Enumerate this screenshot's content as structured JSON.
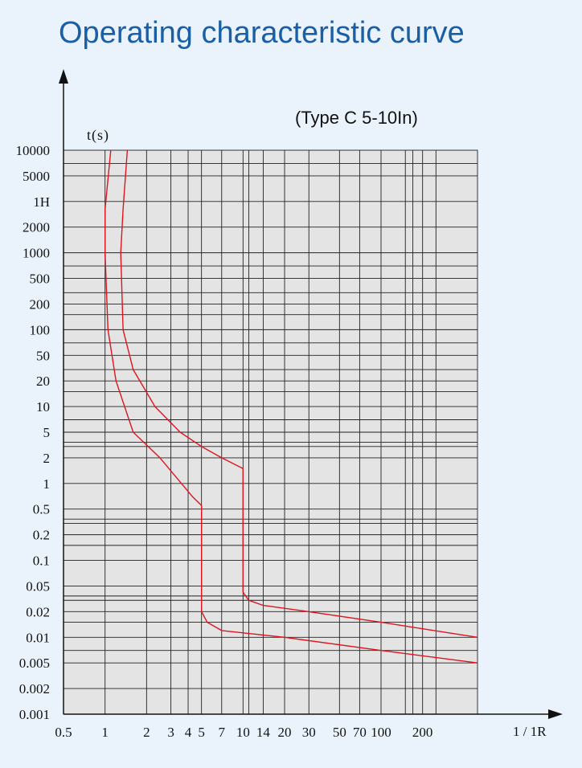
{
  "title": "Operating characteristic curve",
  "chart_data": {
    "type": "line",
    "title": "Operating characteristic curve",
    "subtitle": "(Type C 5-10In)",
    "ylabel": "t(s)",
    "xlabel": "1 / 1R",
    "xscale": "log",
    "yscale": "log",
    "grid": true,
    "x_ticks": [
      {
        "label": "0.5",
        "value": 0.5
      },
      {
        "label": "1",
        "value": 1
      },
      {
        "label": "2",
        "value": 2
      },
      {
        "label": "3",
        "value": 3
      },
      {
        "label": "4",
        "value": 4
      },
      {
        "label": "5",
        "value": 5
      },
      {
        "label": "7",
        "value": 7
      },
      {
        "label": "10",
        "value": 10
      },
      {
        "label": "14",
        "value": 14
      },
      {
        "label": "20",
        "value": 20
      },
      {
        "label": "30",
        "value": 30
      },
      {
        "label": "50",
        "value": 50
      },
      {
        "label": "70",
        "value": 70
      },
      {
        "label": "100",
        "value": 100
      },
      {
        "label": "200",
        "value": 200
      }
    ],
    "y_ticks": [
      "10000",
      "5000",
      "1H",
      "2000",
      "1000",
      "500",
      "200",
      "100",
      "50",
      "20",
      "10",
      "5",
      "2",
      "1",
      "0.5",
      "0.2",
      "0.1",
      "0.05",
      "0.02",
      "0.01",
      "0.005",
      "0.002",
      "0.001"
    ],
    "series": [
      {
        "points": [
          [
            1.1,
            10000
          ],
          [
            1.0,
            3000
          ],
          [
            1.0,
            1000
          ],
          [
            1.05,
            100
          ],
          [
            1.2,
            20
          ],
          [
            1.6,
            5
          ],
          [
            2.5,
            2
          ],
          [
            4.3,
            0.7
          ],
          [
            5.0,
            0.55
          ],
          [
            5.0,
            0.02
          ],
          [
            5.5,
            0.015
          ],
          [
            7,
            0.012
          ],
          [
            20,
            0.01
          ],
          [
            100,
            0.007
          ],
          [
            500,
            0.005
          ]
        ]
      },
      {
        "points": [
          [
            1.45,
            10000
          ],
          [
            1.35,
            3000
          ],
          [
            1.3,
            1000
          ],
          [
            1.35,
            100
          ],
          [
            1.6,
            30
          ],
          [
            2.3,
            10
          ],
          [
            3.5,
            5
          ],
          [
            5,
            3
          ],
          [
            7,
            2
          ],
          [
            10,
            1.5
          ],
          [
            10,
            0.04
          ],
          [
            11,
            0.03
          ],
          [
            14,
            0.025
          ],
          [
            30,
            0.02
          ],
          [
            100,
            0.015
          ],
          [
            500,
            0.01
          ]
        ]
      }
    ]
  }
}
